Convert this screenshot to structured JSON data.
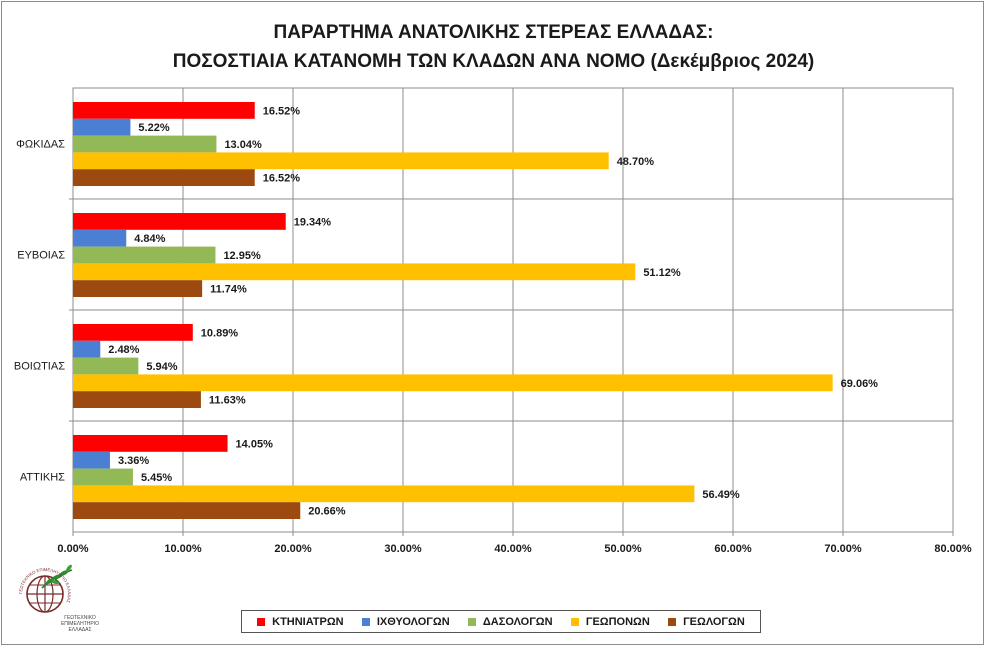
{
  "title_lines": [
    "ΠΑΡΑΡΤΗΜΑ ΑΝΑΤΟΛΙΚΗΣ ΣΤΕΡΕΑΣ ΕΛΛΑΔΑΣ:",
    "ΠΟΣΟΣΤΙΑΙΑ ΚΑΤΑΝΟΜΗ ΤΩΝ ΚΛΑΔΩΝ ΑΝΑ ΝΟΜΟ (Δεκέμβριος 2024)"
  ],
  "logo": {
    "ring_text": "ΓΕΩΤΕΧΝΙΚΟ ΕΠΙΜΕΛΗΤΗΡΙΟ ΕΛΛΑΔΑΣ",
    "caption_lines": [
      "ΓΕΩΤΕΧΝΙΚΟ",
      "ΕΠΙΜΕΛΗΤΗΡΙΟ",
      "ΕΛΛΑΔΑΣ"
    ]
  },
  "chart_data": {
    "type": "bar",
    "orientation": "horizontal",
    "categories": [
      "ΦΩΚΙΔΑΣ",
      "ΕΥΒΟΙΑΣ",
      "ΒΟΙΩΤΙΑΣ",
      "ΑΤΤΙΚΗΣ"
    ],
    "series": [
      {
        "name": "ΚΤΗΝΙΑΤΡΩΝ",
        "color": "#ff0000",
        "values": [
          16.52,
          19.34,
          10.89,
          14.05
        ]
      },
      {
        "name": "ΙΧΘΥΟΛΟΓΩΝ",
        "color": "#4a7fd4",
        "values": [
          5.22,
          4.84,
          2.48,
          3.36
        ]
      },
      {
        "name": "ΔΑΣΟΛΟΓΩΝ",
        "color": "#93b956",
        "values": [
          13.04,
          12.95,
          5.94,
          5.45
        ]
      },
      {
        "name": "ΓΕΩΠΟΝΩΝ",
        "color": "#ffc000",
        "values": [
          48.7,
          51.12,
          69.06,
          56.49
        ]
      },
      {
        "name": "ΓΕΩΛΟΓΩΝ",
        "color": "#9c4a10",
        "values": [
          16.52,
          11.74,
          11.63,
          20.66
        ]
      }
    ],
    "xlim": [
      0,
      80
    ],
    "x_ticks": [
      0,
      10,
      20,
      30,
      40,
      50,
      60,
      70,
      80
    ],
    "x_tick_labels": [
      "0.00%",
      "10.00%",
      "20.00%",
      "30.00%",
      "40.00%",
      "50.00%",
      "60.00%",
      "70.00%",
      "80.00%"
    ],
    "value_format": "percent_2dp",
    "grid": true,
    "legend_position": "bottom"
  }
}
